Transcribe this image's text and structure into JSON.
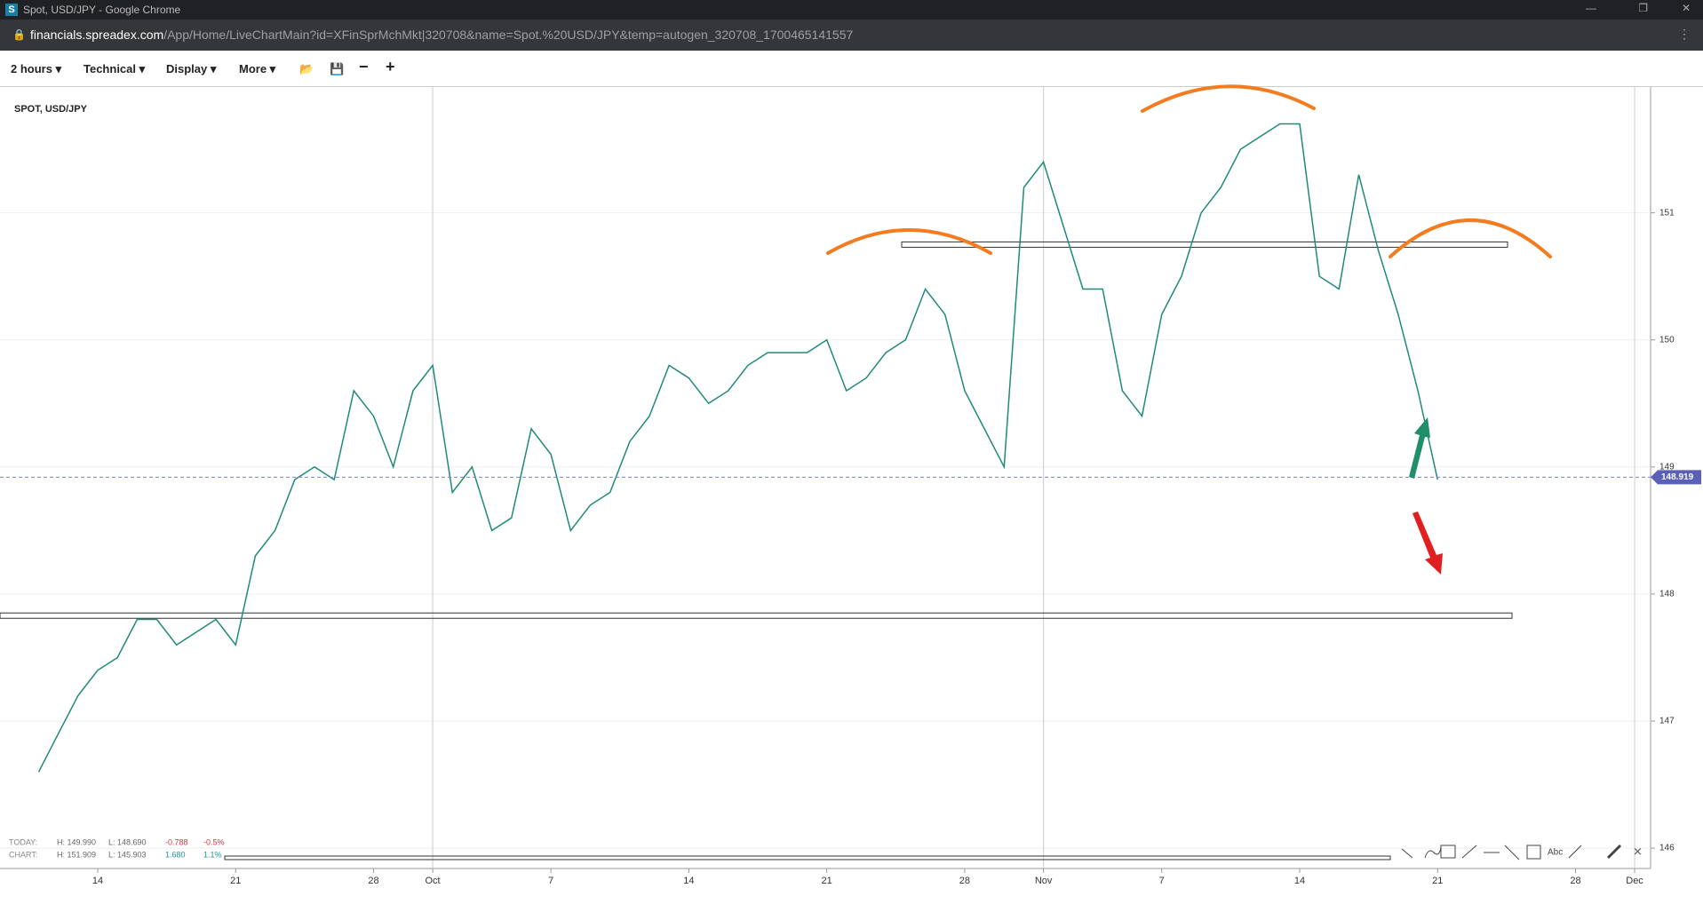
{
  "window": {
    "title": "Spot, USD/JPY - Google Chrome",
    "url_host": "financials.spreadex.com",
    "url_path": "/App/Home/LiveChartMain?id=XFinSprMchMkt|320708&name=Spot.%20USD/JPY&temp=autogen_320708_1700465141557"
  },
  "toolbar": {
    "items": [
      "2 hours",
      "Technical",
      "Display",
      "More"
    ]
  },
  "stats": {
    "today": {
      "label": "TODAY:",
      "high": "H: 149.990",
      "low": "L: 148.690",
      "change": "-0.788",
      "change_pct": "-0.5%"
    },
    "chart": {
      "label": "CHART:",
      "high": "H: 151.909",
      "low": "L: 145.903",
      "change": "1.680",
      "change_pct": "1.1%"
    }
  },
  "tools": {
    "text_tool": "Abc"
  },
  "chart_data": {
    "type": "line",
    "title": "SPOT, USD/JPY",
    "color": "#1f8a78",
    "categories": [
      null,
      null,
      null,
      "14",
      null,
      null,
      null,
      null,
      null,
      null,
      "21",
      null,
      null,
      null,
      null,
      null,
      null,
      "28",
      null,
      null,
      "Oct",
      null,
      null,
      null,
      null,
      null,
      "7",
      null,
      null,
      null,
      null,
      null,
      null,
      "14",
      null,
      null,
      null,
      null,
      null,
      null,
      "21",
      null,
      null,
      null,
      null,
      null,
      null,
      "28",
      null,
      null,
      null,
      "Nov",
      null,
      null,
      null,
      null,
      null,
      "7",
      null,
      null,
      null,
      null,
      null,
      null,
      "14",
      null,
      null,
      null,
      null,
      null,
      null,
      "21",
      null,
      null,
      null,
      null,
      null,
      null,
      "28",
      null,
      null,
      "Dec"
    ],
    "values": [
      146.6,
      146.9,
      147.2,
      147.4,
      147.5,
      147.8,
      147.8,
      147.6,
      147.7,
      147.8,
      147.6,
      148.3,
      148.5,
      148.9,
      149.0,
      148.9,
      149.6,
      149.4,
      149.0,
      149.6,
      149.8,
      148.8,
      149.0,
      148.5,
      148.6,
      149.3,
      149.1,
      148.5,
      148.7,
      148.8,
      149.2,
      149.4,
      149.8,
      149.7,
      149.5,
      149.6,
      149.8,
      149.9,
      149.9,
      149.9,
      150.0,
      149.6,
      149.7,
      149.9,
      150.0,
      150.4,
      150.2,
      149.6,
      149.3,
      149.0,
      151.2,
      151.4,
      150.9,
      150.4,
      150.4,
      149.6,
      149.4,
      150.2,
      150.5,
      151.0,
      151.2,
      151.5,
      151.6,
      151.7,
      151.7,
      150.5,
      150.4,
      151.3,
      150.7,
      150.2,
      149.6,
      148.9,
      null,
      null,
      null,
      null,
      null,
      null,
      null,
      null,
      null,
      null
    ],
    "ylim": [
      145.84,
      151.99
    ],
    "yticks": [
      146,
      147,
      148,
      149,
      150,
      151
    ],
    "grid": true,
    "last_price": 148.919,
    "levels": [
      147.83,
      150.75
    ]
  }
}
